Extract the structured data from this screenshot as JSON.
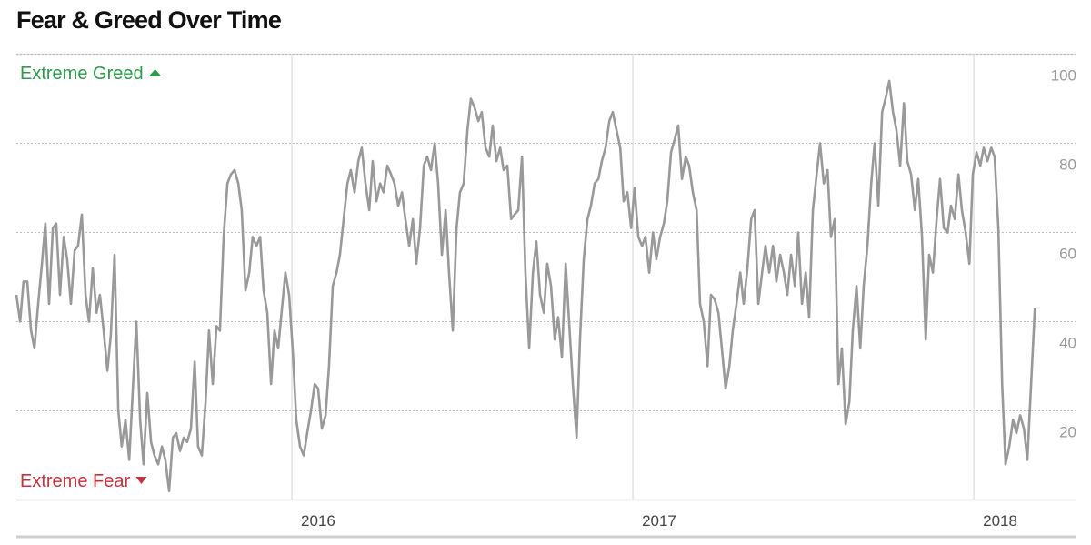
{
  "chart_data": {
    "type": "line",
    "title": "Fear & Greed Over Time",
    "annotations": [
      "Extreme Greed",
      "Extreme Fear"
    ],
    "color": "#999999",
    "xlim": [
      2015.192,
      2018.301
    ],
    "xticks": [
      2016,
      2017,
      2018
    ],
    "ylim": [
      0,
      100
    ],
    "yticks": [
      20,
      40,
      60,
      80,
      100
    ],
    "grid": true,
    "x": [
      2015.192,
      2015.203,
      2015.213,
      2015.224,
      2015.235,
      2015.245,
      2015.256,
      2015.267,
      2015.277,
      2015.288,
      2015.299,
      2015.309,
      2015.32,
      2015.331,
      2015.341,
      2015.352,
      2015.363,
      2015.373,
      2015.384,
      2015.395,
      2015.405,
      2015.416,
      2015.427,
      2015.437,
      2015.448,
      2015.459,
      2015.469,
      2015.48,
      2015.491,
      2015.501,
      2015.512,
      2015.523,
      2015.533,
      2015.544,
      2015.555,
      2015.565,
      2015.576,
      2015.587,
      2015.597,
      2015.608,
      2015.619,
      2015.629,
      2015.64,
      2015.651,
      2015.661,
      2015.672,
      2015.683,
      2015.693,
      2015.704,
      2015.715,
      2015.725,
      2015.736,
      2015.747,
      2015.757,
      2015.768,
      2015.779,
      2015.789,
      2015.8,
      2015.811,
      2015.821,
      2015.832,
      2015.843,
      2015.853,
      2015.864,
      2015.875,
      2015.885,
      2015.896,
      2015.907,
      2015.917,
      2015.928,
      2015.939,
      2015.949,
      2015.96,
      2015.971,
      2015.981,
      2015.992,
      2016.003,
      2016.013,
      2016.024,
      2016.035,
      2016.045,
      2016.056,
      2016.067,
      2016.077,
      2016.088,
      2016.099,
      2016.109,
      2016.12,
      2016.131,
      2016.141,
      2016.152,
      2016.163,
      2016.173,
      2016.184,
      2016.195,
      2016.205,
      2016.216,
      2016.227,
      2016.237,
      2016.248,
      2016.259,
      2016.269,
      2016.28,
      2016.291,
      2016.301,
      2016.312,
      2016.323,
      2016.333,
      2016.344,
      2016.355,
      2016.365,
      2016.376,
      2016.387,
      2016.397,
      2016.408,
      2016.419,
      2016.429,
      2016.44,
      2016.451,
      2016.461,
      2016.472,
      2016.483,
      2016.493,
      2016.504,
      2016.515,
      2016.525,
      2016.536,
      2016.547,
      2016.557,
      2016.568,
      2016.579,
      2016.589,
      2016.6,
      2016.611,
      2016.621,
      2016.632,
      2016.643,
      2016.653,
      2016.664,
      2016.675,
      2016.685,
      2016.696,
      2016.707,
      2016.717,
      2016.728,
      2016.739,
      2016.749,
      2016.76,
      2016.771,
      2016.781,
      2016.792,
      2016.803,
      2016.813,
      2016.824,
      2016.835,
      2016.845,
      2016.856,
      2016.867,
      2016.877,
      2016.888,
      2016.899,
      2016.909,
      2016.92,
      2016.931,
      2016.941,
      2016.952,
      2016.963,
      2016.973,
      2016.984,
      2016.995,
      2017.005,
      2017.016,
      2017.027,
      2017.037,
      2017.048,
      2017.059,
      2017.069,
      2017.08,
      2017.091,
      2017.101,
      2017.112,
      2017.123,
      2017.133,
      2017.144,
      2017.155,
      2017.165,
      2017.176,
      2017.187,
      2017.197,
      2017.208,
      2017.219,
      2017.229,
      2017.24,
      2017.251,
      2017.261,
      2017.272,
      2017.283,
      2017.293,
      2017.304,
      2017.315,
      2017.325,
      2017.336,
      2017.347,
      2017.357,
      2017.368,
      2017.379,
      2017.389,
      2017.4,
      2017.411,
      2017.421,
      2017.432,
      2017.443,
      2017.453,
      2017.464,
      2017.475,
      2017.485,
      2017.496,
      2017.507,
      2017.517,
      2017.528,
      2017.539,
      2017.549,
      2017.56,
      2017.571,
      2017.581,
      2017.592,
      2017.603,
      2017.613,
      2017.624,
      2017.635,
      2017.645,
      2017.656,
      2017.667,
      2017.677,
      2017.688,
      2017.699,
      2017.709,
      2017.72,
      2017.731,
      2017.741,
      2017.752,
      2017.763,
      2017.773,
      2017.784,
      2017.795,
      2017.805,
      2017.816,
      2017.827,
      2017.837,
      2017.848,
      2017.859,
      2017.869,
      2017.88,
      2017.891,
      2017.901,
      2017.912,
      2017.923,
      2017.933,
      2017.944,
      2017.955,
      2017.965,
      2017.976,
      2017.987,
      2017.997,
      2018.008,
      2018.019,
      2018.029,
      2018.04,
      2018.051,
      2018.061,
      2018.072,
      2018.083,
      2018.093,
      2018.104,
      2018.115,
      2018.125,
      2018.136,
      2018.147,
      2018.157,
      2018.168,
      2018.179
    ],
    "values": [
      46,
      40,
      49,
      49,
      38,
      34,
      44,
      53,
      62,
      44,
      61,
      62,
      46,
      59,
      54,
      44,
      56,
      57,
      64,
      46,
      40,
      52,
      42,
      46,
      38,
      29,
      37,
      55,
      20,
      12,
      18,
      9,
      24,
      40,
      18,
      8,
      24,
      13,
      10,
      8,
      12,
      9,
      2,
      14,
      15,
      11,
      14,
      13,
      16,
      31,
      12,
      10,
      22,
      38,
      26,
      39,
      38,
      59,
      71,
      73,
      74,
      71,
      65,
      47,
      51,
      59,
      57,
      59,
      47,
      42,
      26,
      38,
      34,
      43,
      51,
      46,
      33,
      18,
      12,
      10,
      15,
      20,
      26,
      25,
      16,
      19,
      30,
      48,
      51,
      55,
      63,
      71,
      74,
      69,
      76,
      79,
      71,
      65,
      76,
      67,
      71,
      69,
      75,
      73,
      71,
      66,
      69,
      63,
      57,
      63,
      53,
      61,
      75,
      77,
      74,
      80,
      71,
      55,
      65,
      51,
      38,
      61,
      69,
      71,
      83,
      90,
      88,
      85,
      87,
      79,
      77,
      84,
      76,
      79,
      74,
      75,
      63,
      64,
      65,
      77,
      51,
      34,
      51,
      58,
      46,
      42,
      53,
      48,
      36,
      41,
      32,
      53,
      40,
      26,
      14,
      36,
      54,
      63,
      66,
      71,
      72,
      76,
      79,
      85,
      87,
      83,
      79,
      67,
      69,
      61,
      70,
      59,
      57,
      59,
      51,
      60,
      54,
      59,
      62,
      67,
      78,
      81,
      84,
      72,
      77,
      75,
      69,
      65,
      44,
      40,
      30,
      46,
      45,
      42,
      34,
      25,
      30,
      38,
      44,
      51,
      44,
      52,
      63,
      65,
      44,
      51,
      57,
      51,
      57,
      49,
      55,
      51,
      46,
      55,
      48,
      60,
      44,
      51,
      41,
      65,
      73,
      80,
      71,
      74,
      59,
      63,
      26,
      34,
      17,
      22,
      38,
      48,
      34,
      48,
      57,
      71,
      80,
      66,
      87,
      90,
      94,
      87,
      83,
      75,
      89,
      76,
      73,
      65,
      72,
      59,
      36,
      55,
      51,
      63,
      72,
      61,
      60,
      66,
      63,
      73,
      65,
      60,
      53,
      73,
      78,
      75,
      79,
      76,
      79,
      77,
      61,
      26,
      8,
      12,
      18,
      15,
      19,
      16,
      9,
      26,
      43
    ]
  }
}
